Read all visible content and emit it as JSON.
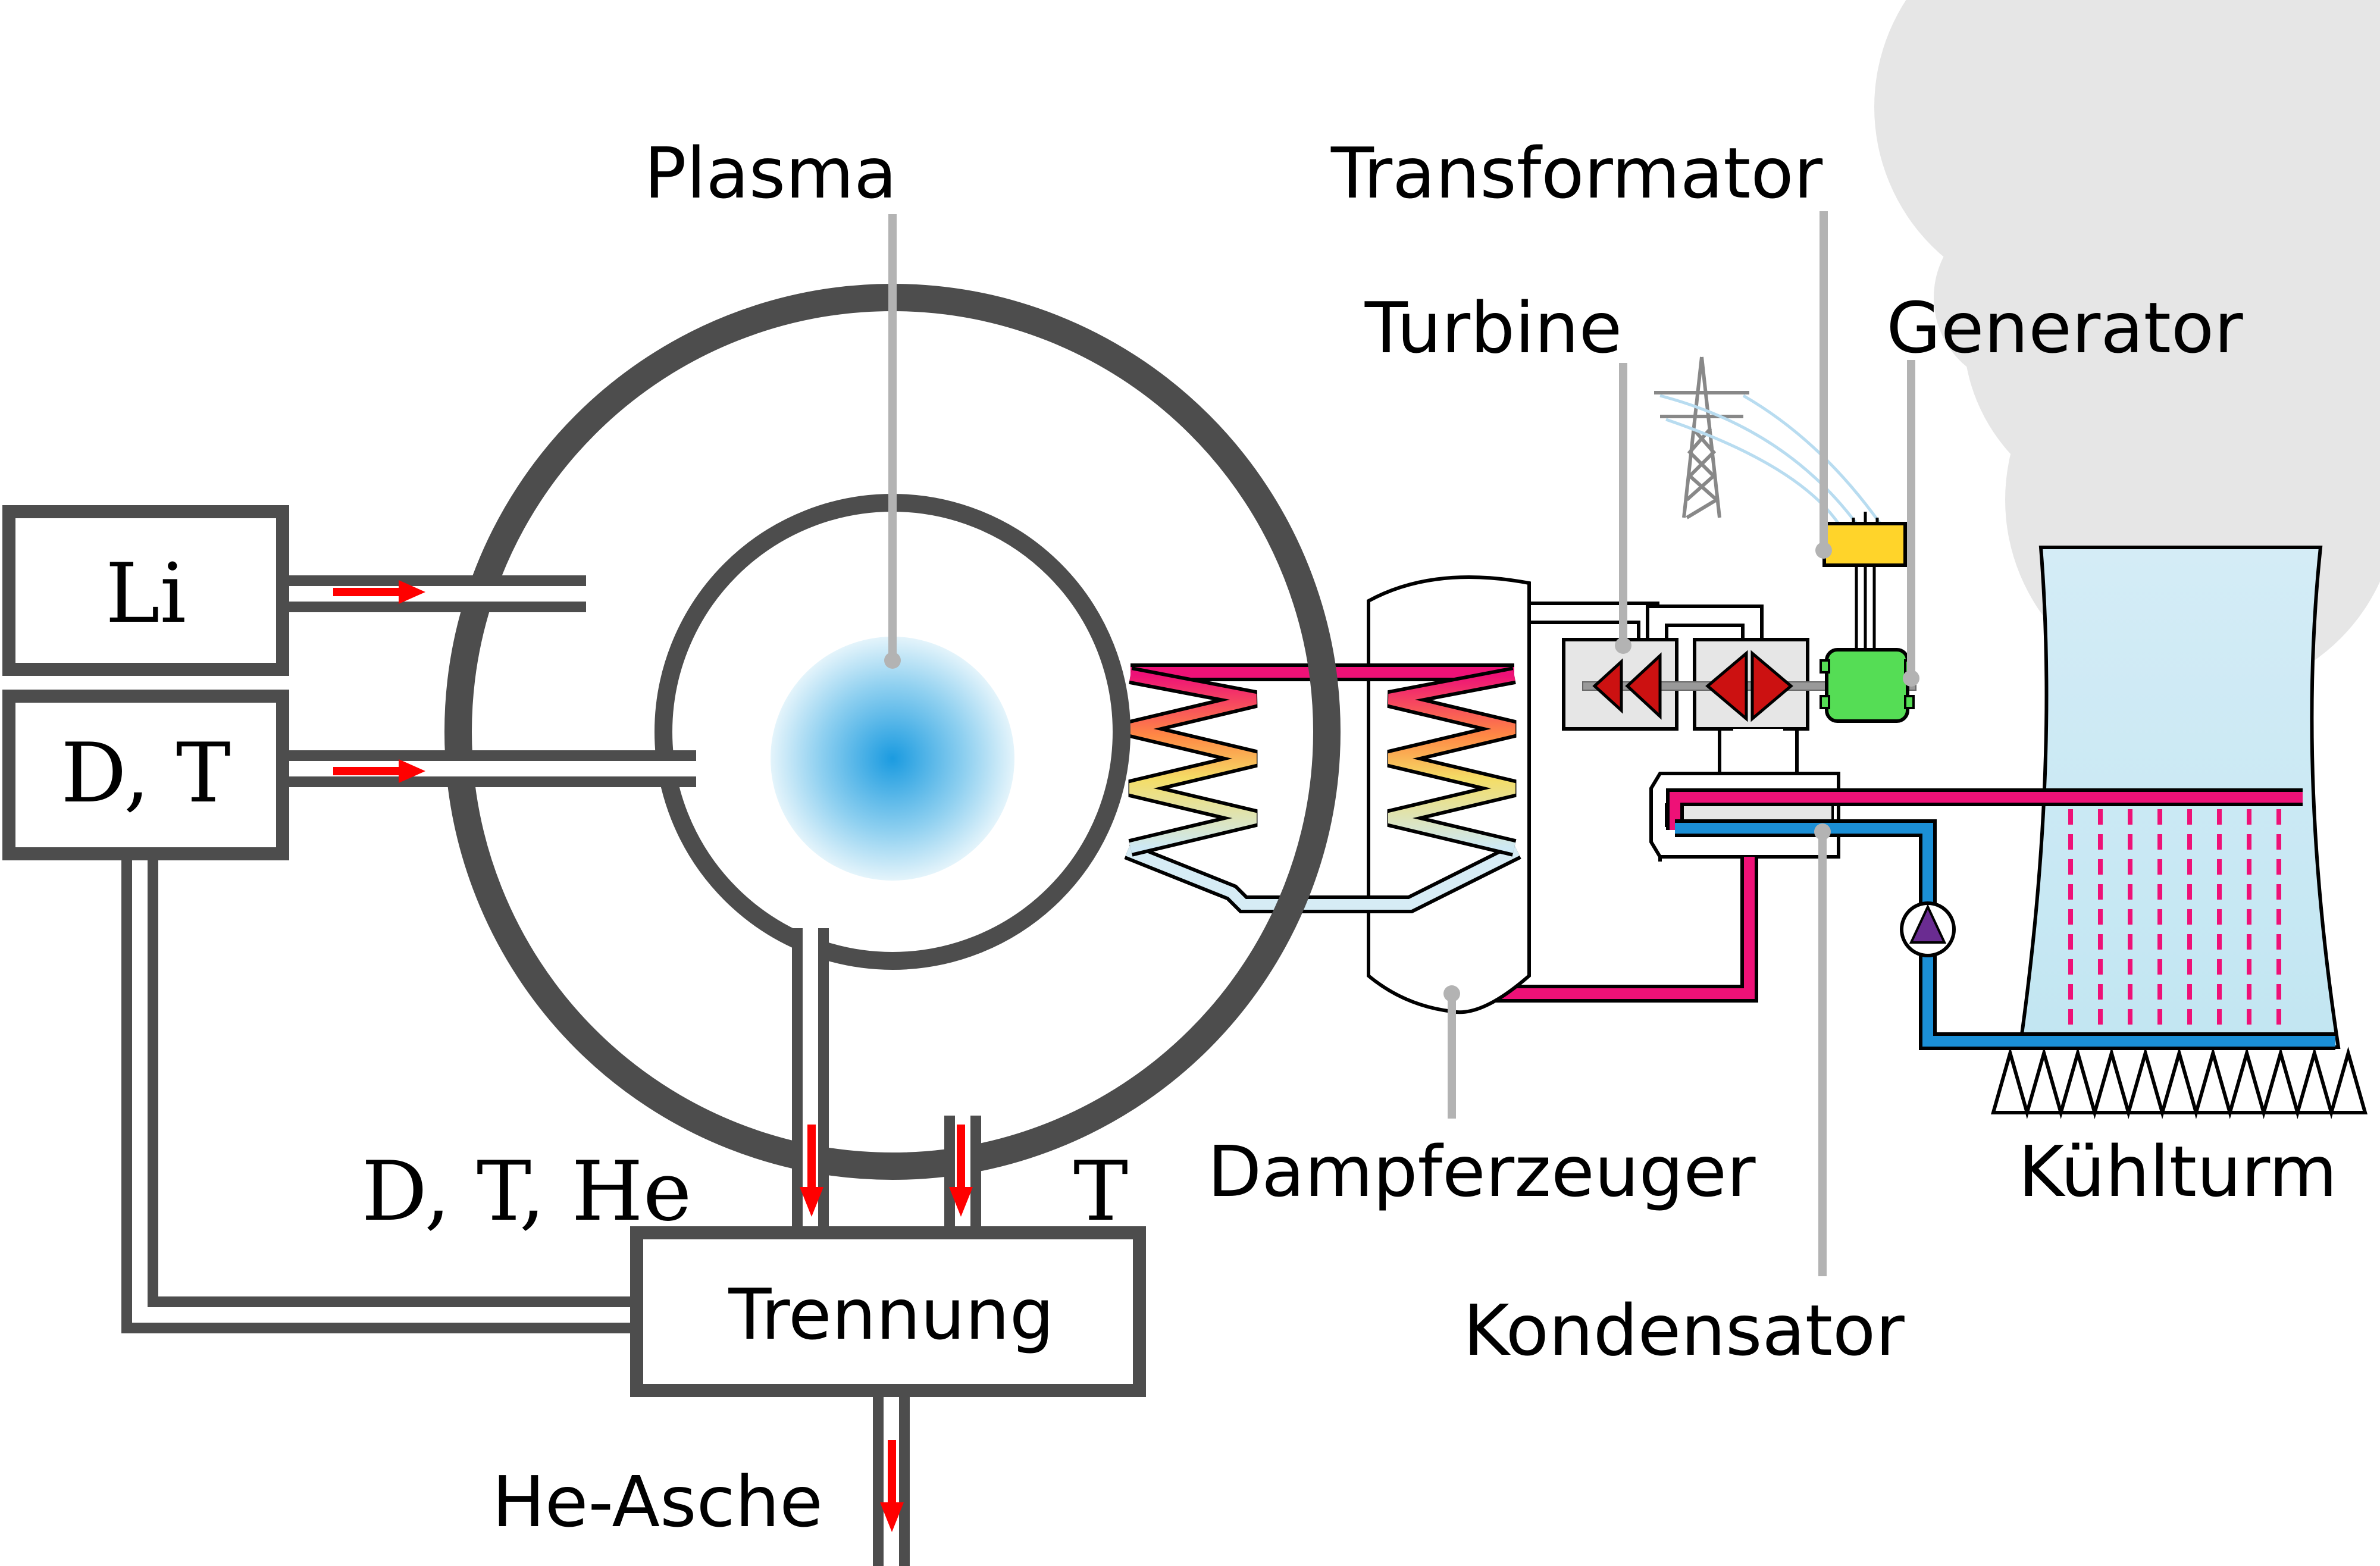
{
  "labels": {
    "plasma": "Plasma",
    "transformator": "Transformator",
    "turbine": "Turbine",
    "generator": "Generator",
    "li": "Li",
    "dt": "D, T",
    "dthe": "D, T, He",
    "t": "T",
    "trennung": "Trennung",
    "heasche": "He-Asche",
    "dampferzeuger": "Dampferzeuger",
    "kondensator": "Kondensator",
    "kuehlturm": "Kühlturm"
  },
  "colors": {
    "wall": "#4d4d4d",
    "leader": "#b3b3b3",
    "arrow": "#ff0000",
    "hot": "#ee1177",
    "cold": "#1b8fd6",
    "steam_light": "#d6ecf5",
    "transformer": "#ffd42a",
    "generator": "#55dd55",
    "plasma": "#1b9be0",
    "smoke": "#e6e6e6"
  }
}
